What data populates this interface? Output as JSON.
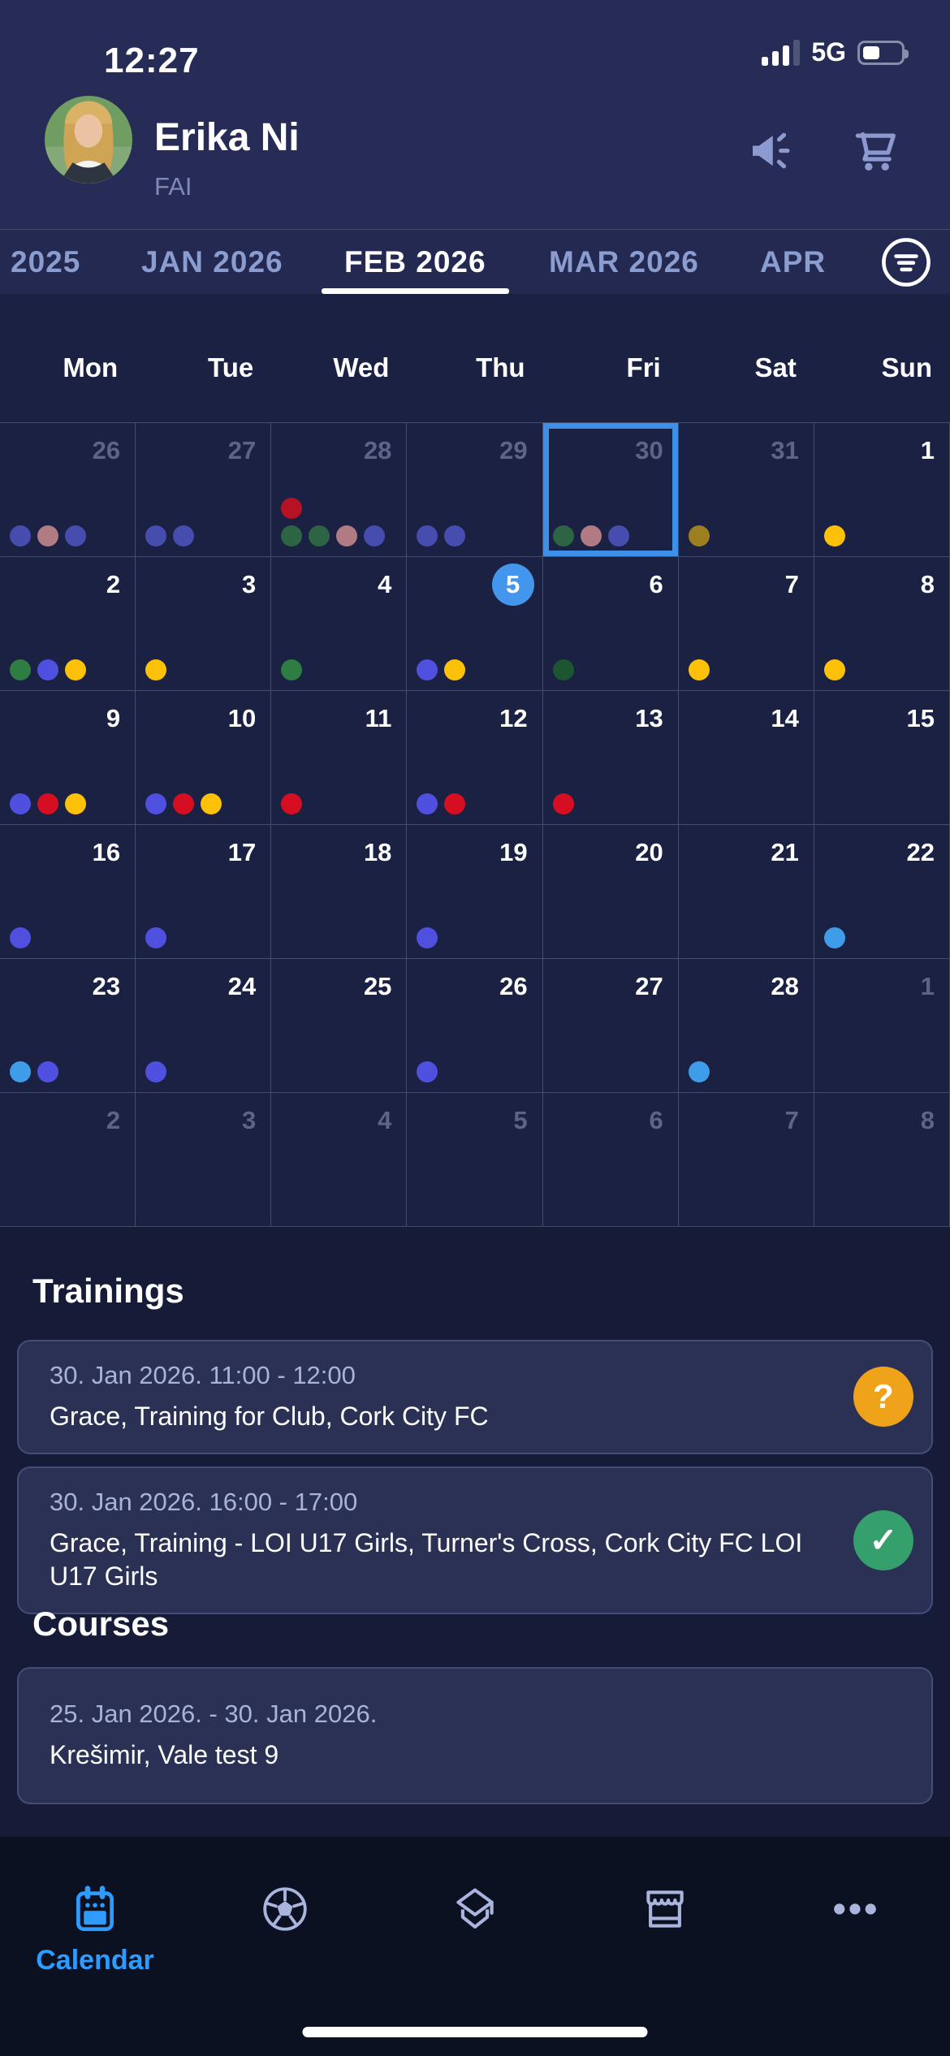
{
  "status_bar": {
    "time": "12:27",
    "network": "5G",
    "battery_percent": 35
  },
  "header": {
    "name": "Erika Ni",
    "org": "FAI"
  },
  "tabs": {
    "items": [
      {
        "label": "2025",
        "active": false
      },
      {
        "label": "JAN 2026",
        "active": false
      },
      {
        "label": "FEB 2026",
        "active": true
      },
      {
        "label": "MAR 2026",
        "active": false
      },
      {
        "label": "APR",
        "active": false
      }
    ]
  },
  "calendar": {
    "weekdays": [
      "Mon",
      "Tue",
      "Wed",
      "Thu",
      "Fri",
      "Sat",
      "Sun"
    ],
    "weeks": [
      [
        {
          "d": 26,
          "muted": true,
          "dots": [
            "#474dae",
            "#b17b84",
            "#474dae"
          ]
        },
        {
          "d": 27,
          "muted": true,
          "dots": [
            "#474dae",
            "#474dae"
          ]
        },
        {
          "d": 28,
          "muted": true,
          "dots": [
            "#2d6444",
            "#2d6444",
            "#b17b84",
            "#474dae",
            "#b51323"
          ]
        },
        {
          "d": 29,
          "muted": true,
          "dots": [
            "#474dae",
            "#474dae"
          ]
        },
        {
          "d": 30,
          "muted": true,
          "selected": true,
          "dots": [
            "#2d6444",
            "#b17b84",
            "#474dae"
          ]
        },
        {
          "d": 31,
          "muted": true,
          "dots": [
            "#9c8020"
          ]
        },
        {
          "d": 1,
          "dots": [
            "#fdc10a"
          ]
        }
      ],
      [
        {
          "d": 2,
          "dots": [
            "#2e7d43",
            "#4f4fe0",
            "#fdc10a"
          ]
        },
        {
          "d": 3,
          "dots": [
            "#fdc10a"
          ]
        },
        {
          "d": 4,
          "dots": [
            "#2e7d43"
          ]
        },
        {
          "d": 5,
          "today": true,
          "dots": [
            "#4f4fe0",
            "#fdc10a"
          ]
        },
        {
          "d": 6,
          "dots": [
            "#1d5531"
          ]
        },
        {
          "d": 7,
          "dots": [
            "#fdc10a"
          ]
        },
        {
          "d": 8,
          "dots": [
            "#fdc10a"
          ]
        }
      ],
      [
        {
          "d": 9,
          "dots": [
            "#4f4fe0",
            "#d50f21",
            "#fdc10a"
          ]
        },
        {
          "d": 10,
          "dots": [
            "#4f4fe0",
            "#d50f21",
            "#fdc10a"
          ]
        },
        {
          "d": 11,
          "dots": [
            "#d50f21"
          ]
        },
        {
          "d": 12,
          "dots": [
            "#4f4fe0",
            "#d50f21"
          ]
        },
        {
          "d": 13,
          "dots": [
            "#d50f21"
          ]
        },
        {
          "d": 14,
          "dots": []
        },
        {
          "d": 15,
          "dots": []
        }
      ],
      [
        {
          "d": 16,
          "dots": [
            "#4f4fe0"
          ]
        },
        {
          "d": 17,
          "dots": [
            "#4f4fe0"
          ]
        },
        {
          "d": 18,
          "dots": []
        },
        {
          "d": 19,
          "dots": [
            "#4f4fe0"
          ]
        },
        {
          "d": 20,
          "dots": []
        },
        {
          "d": 21,
          "dots": []
        },
        {
          "d": 22,
          "dots": [
            "#3f9ce8"
          ]
        }
      ],
      [
        {
          "d": 23,
          "dots": [
            "#3f9ce8",
            "#4f4fe0"
          ]
        },
        {
          "d": 24,
          "dots": [
            "#4f4fe0"
          ]
        },
        {
          "d": 25,
          "dots": []
        },
        {
          "d": 26,
          "dots": [
            "#4f4fe0"
          ]
        },
        {
          "d": 27,
          "dots": []
        },
        {
          "d": 28,
          "dots": [
            "#3f9ce8"
          ]
        },
        {
          "d": 1,
          "muted": true,
          "dots": []
        }
      ],
      [
        {
          "d": 2,
          "muted": true,
          "dots": []
        },
        {
          "d": 3,
          "muted": true,
          "dots": []
        },
        {
          "d": 4,
          "muted": true,
          "dots": []
        },
        {
          "d": 5,
          "muted": true,
          "dots": []
        },
        {
          "d": 6,
          "muted": true,
          "dots": []
        },
        {
          "d": 7,
          "muted": true,
          "dots": []
        },
        {
          "d": 8,
          "muted": true,
          "dots": []
        }
      ]
    ]
  },
  "trainings": {
    "title": "Trainings",
    "items": [
      {
        "time": "30. Jan 2026. 11:00 - 12:00",
        "title": "Grace, Training for Club, Cork City FC",
        "badge": "question",
        "badge_glyph": "?",
        "badge_color": "#eea31b"
      },
      {
        "time": "30. Jan 2026. 16:00 - 17:00",
        "title": "Grace, Training - LOI U17 Girls, Turner's Cross, Cork City FC LOI U17 Girls",
        "badge": "check",
        "badge_glyph": "✓",
        "badge_color": "#35a06c"
      }
    ]
  },
  "courses": {
    "title": "Courses",
    "items": [
      {
        "time": "25. Jan 2026. - 30. Jan 2026.",
        "title": "Krešimir, Vale test 9"
      }
    ]
  },
  "nav": {
    "items": [
      {
        "icon": "calendar",
        "label": "Calendar",
        "active": true
      },
      {
        "icon": "football",
        "label": "",
        "active": false
      },
      {
        "icon": "graduation",
        "label": "",
        "active": false
      },
      {
        "icon": "store",
        "label": "",
        "active": false
      },
      {
        "icon": "more",
        "label": "",
        "active": false
      }
    ]
  },
  "colors": {
    "selected_day_border": "#3d8fe8",
    "today_circle": "#4496ec",
    "nav_active": "#2e9cff"
  }
}
